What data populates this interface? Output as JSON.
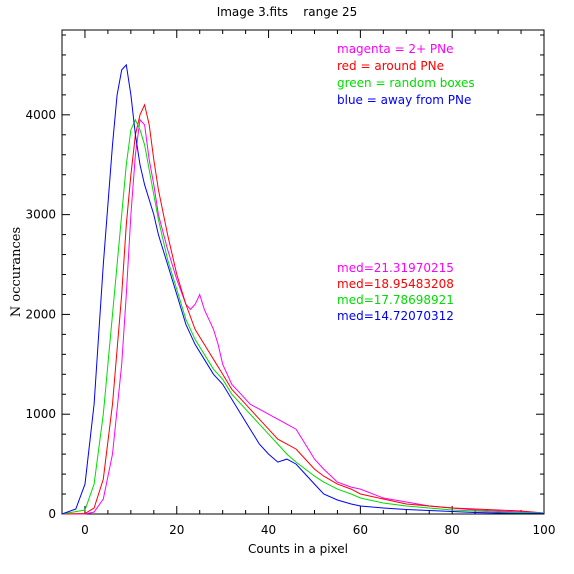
{
  "chart_data": {
    "type": "line",
    "title": "Image 3.fits    range 25",
    "xlabel": "Counts in a pixel",
    "ylabel": "N occurances",
    "xlim": [
      -5,
      100
    ],
    "ylim": [
      0,
      4850
    ],
    "x_ticks": [
      0,
      20,
      40,
      60,
      80,
      100
    ],
    "y_ticks": [
      0,
      1000,
      2000,
      3000,
      4000
    ],
    "legend": [
      {
        "text": "magenta = 2+ PNe",
        "color": "#ff00ff"
      },
      {
        "text": "red = around PNe",
        "color": "#ff0000"
      },
      {
        "text": "green = random boxes",
        "color": "#00dd00"
      },
      {
        "text": "blue = away from PNe",
        "color": "#0000ff"
      }
    ],
    "medians": [
      {
        "text": "med=21.31970215",
        "color": "#ff00ff"
      },
      {
        "text": "med=18.95483208",
        "color": "#ff0000"
      },
      {
        "text": "med=17.78698921",
        "color": "#00dd00"
      },
      {
        "text": "med=14.72070312",
        "color": "#0000ff"
      }
    ],
    "series": [
      {
        "color": "#ff00ff",
        "x": [
          -5,
          0,
          2,
          4,
          6,
          8,
          9,
          10,
          11,
          12,
          13,
          14,
          15,
          16,
          18,
          20,
          22,
          23,
          24,
          25,
          26,
          27,
          28,
          29,
          30,
          32,
          34,
          36,
          38,
          40,
          42,
          44,
          46,
          48,
          50,
          52,
          55,
          58,
          60,
          65,
          70,
          75,
          80,
          85,
          90,
          95,
          100
        ],
        "values": [
          0,
          0,
          20,
          150,
          600,
          1500,
          2200,
          3000,
          3600,
          3950,
          3900,
          3550,
          3300,
          3000,
          2650,
          2350,
          2100,
          2050,
          2100,
          2200,
          2050,
          1950,
          1850,
          1700,
          1500,
          1300,
          1200,
          1100,
          1050,
          1000,
          950,
          900,
          850,
          700,
          550,
          450,
          320,
          270,
          250,
          160,
          120,
          80,
          60,
          40,
          30,
          20,
          10
        ]
      },
      {
        "color": "#ff0000",
        "x": [
          -5,
          0,
          2,
          4,
          6,
          8,
          9,
          10,
          11,
          12,
          13,
          14,
          15,
          16,
          18,
          20,
          22,
          24,
          26,
          28,
          30,
          32,
          34,
          36,
          38,
          40,
          42,
          44,
          46,
          48,
          50,
          52,
          55,
          58,
          60,
          65,
          70,
          75,
          80,
          85,
          90,
          95,
          100
        ],
        "values": [
          0,
          5,
          60,
          350,
          1100,
          2200,
          2900,
          3400,
          3800,
          4000,
          4100,
          3900,
          3550,
          3250,
          2800,
          2400,
          2100,
          1850,
          1700,
          1550,
          1400,
          1250,
          1150,
          1050,
          950,
          850,
          750,
          700,
          650,
          550,
          450,
          380,
          300,
          250,
          200,
          150,
          100,
          80,
          60,
          50,
          40,
          30,
          10
        ]
      },
      {
        "color": "#00dd00",
        "x": [
          -5,
          0,
          2,
          4,
          6,
          8,
          9,
          10,
          11,
          12,
          13,
          14,
          15,
          16,
          18,
          20,
          22,
          24,
          26,
          28,
          30,
          32,
          34,
          36,
          38,
          40,
          42,
          44,
          46,
          48,
          50,
          52,
          55,
          58,
          60,
          65,
          70,
          75,
          80,
          85,
          90,
          95,
          100
        ],
        "values": [
          0,
          40,
          300,
          1000,
          2000,
          3000,
          3500,
          3850,
          3950,
          3850,
          3700,
          3450,
          3200,
          2950,
          2550,
          2250,
          1950,
          1750,
          1600,
          1450,
          1350,
          1200,
          1100,
          1000,
          900,
          800,
          700,
          600,
          520,
          450,
          380,
          320,
          250,
          200,
          160,
          110,
          80,
          60,
          40,
          30,
          20,
          15,
          10
        ]
      },
      {
        "color": "#0000ff",
        "x": [
          -5,
          -2,
          0,
          2,
          4,
          6,
          7,
          8,
          9,
          10,
          11,
          12,
          13,
          14,
          15,
          16,
          18,
          20,
          22,
          24,
          26,
          28,
          30,
          32,
          34,
          36,
          38,
          40,
          42,
          44,
          46,
          48,
          50,
          52,
          55,
          58,
          60,
          65,
          70,
          75,
          80,
          85,
          90,
          95,
          100
        ],
        "values": [
          0,
          50,
          300,
          1100,
          2500,
          3700,
          4200,
          4450,
          4500,
          4200,
          3800,
          3500,
          3300,
          3150,
          3000,
          2800,
          2500,
          2200,
          1900,
          1700,
          1550,
          1400,
          1300,
          1150,
          1000,
          850,
          700,
          600,
          520,
          550,
          500,
          400,
          300,
          200,
          140,
          100,
          80,
          60,
          45,
          35,
          25,
          15,
          10,
          5,
          5
        ]
      }
    ]
  }
}
